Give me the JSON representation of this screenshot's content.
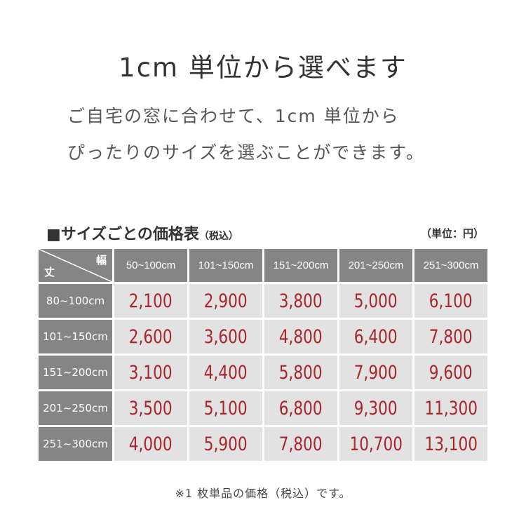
{
  "title": "1cm 単位から選べます",
  "lead": [
    "ご自宅の窓に合わせて、1cm 単位から",
    "ぴったりのサイズを選ぶことができます。"
  ],
  "table_title": "■サイズごとの価格表",
  "table_title_tax": "（税込）",
  "unit": "（単位：円）",
  "corner": {
    "width_label": "幅",
    "height_label": "丈"
  },
  "columns": [
    "50~100cm",
    "101~150cm",
    "151~200cm",
    "201~250cm",
    "251~300cm"
  ],
  "rows": [
    {
      "label": "80~100cm",
      "values": [
        "2,100",
        "2,900",
        "3,800",
        "5,000",
        "6,100"
      ]
    },
    {
      "label": "101~150cm",
      "values": [
        "2,600",
        "3,600",
        "4,800",
        "6,400",
        "7,800"
      ]
    },
    {
      "label": "151~200cm",
      "values": [
        "3,100",
        "4,400",
        "5,800",
        "7,900",
        "9,600"
      ]
    },
    {
      "label": "201~250cm",
      "values": [
        "3,500",
        "5,100",
        "6,800",
        "9,300",
        "11,300"
      ]
    },
    {
      "label": "251~300cm",
      "values": [
        "4,000",
        "5,900",
        "7,800",
        "10,700",
        "13,100"
      ]
    }
  ],
  "note": "※1 枚単品の価格（税込）です。",
  "colors": {
    "header": "#858585",
    "cell": "#e2e2e2",
    "price": "#a8262c"
  }
}
